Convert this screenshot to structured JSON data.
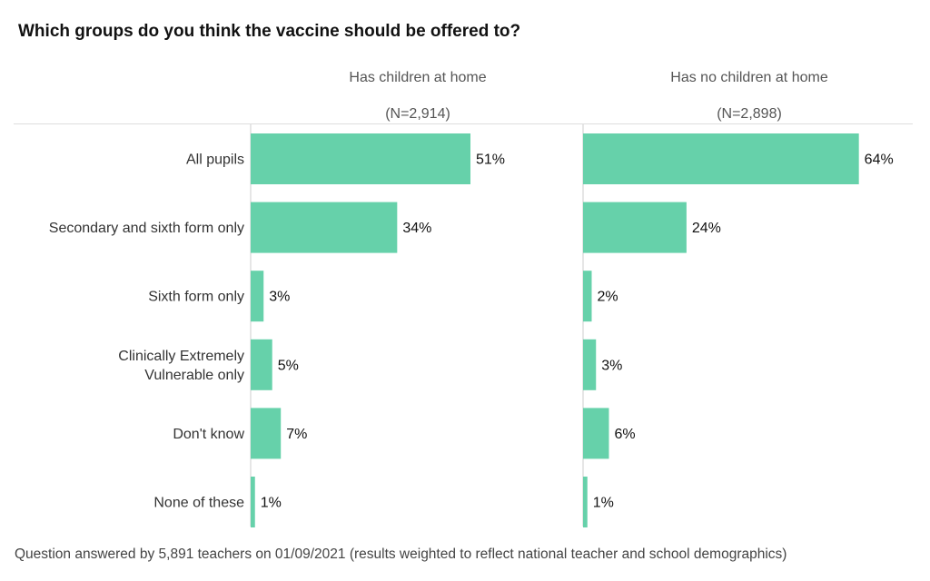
{
  "title": "Which groups do you think the vaccine should be offered to?",
  "footnote": "Question answered by 5,891 teachers on 01/09/2021 (results weighted to reflect national teacher and school demographics)",
  "colors": {
    "bar": "#66d1aa",
    "axis": "#cccccc",
    "text": "#333333"
  },
  "chart_data": {
    "type": "bar",
    "orientation": "horizontal",
    "categories": [
      "All pupils",
      "Secondary and sixth form only",
      "Sixth form only",
      "Clinically Extremely Vulnerable only",
      "Don't know",
      "None of these"
    ],
    "panels": [
      {
        "title": "Has children at home",
        "subtitle": "(N=2,914)",
        "values": [
          51,
          34,
          3,
          5,
          7,
          1
        ],
        "labels": [
          "51%",
          "34%",
          "3%",
          "5%",
          "7%",
          "1%"
        ]
      },
      {
        "title": "Has no children at home",
        "subtitle": "(N=2,898)",
        "values": [
          64,
          24,
          2,
          3,
          6,
          1
        ],
        "labels": [
          "64%",
          "24%",
          "2%",
          "3%",
          "6%",
          "1%"
        ]
      }
    ],
    "xlim": [
      0,
      100
    ],
    "unit": "%"
  }
}
